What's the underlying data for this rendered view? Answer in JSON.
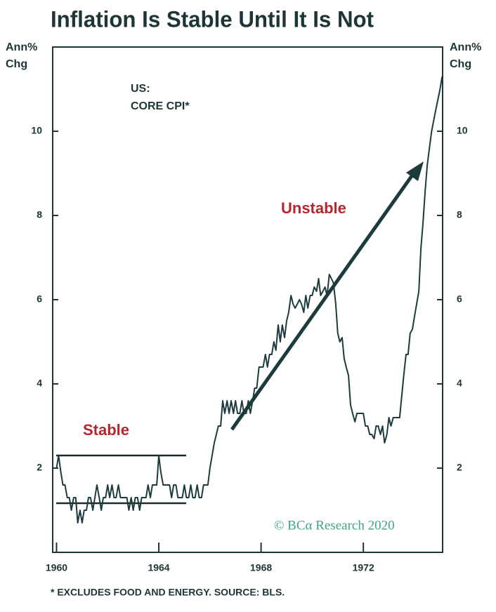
{
  "chart_data": {
    "type": "line",
    "title": "Inflation Is Stable Until It Is Not",
    "ylabel": [
      "Ann%",
      "Chg"
    ],
    "y2label": [
      "Ann%",
      "Chg"
    ],
    "annotations": [
      "US:",
      "CORE CPI*",
      "Stable",
      "Unstable",
      "© BCα Research 2020"
    ],
    "footnote": "* EXCLUDES FOOD AND ENERGY. SOURCE: BLS.",
    "xlim": [
      1959.85,
      1975.1
    ],
    "xticks": [
      1960,
      1964,
      1968,
      1972
    ],
    "ylim": [
      0,
      12
    ],
    "yticks": [
      2,
      4,
      6,
      8,
      10
    ],
    "y2lim": [
      0,
      12
    ],
    "y2ticks": [
      2,
      4,
      6,
      8,
      10
    ],
    "series": [
      {
        "name": "Core CPI",
        "color": "#1d3b3c",
        "x": [
          1960.0,
          1960.08,
          1960.17,
          1960.25,
          1960.33,
          1960.42,
          1960.5,
          1960.58,
          1960.67,
          1960.75,
          1960.83,
          1960.92,
          1961.0,
          1961.08,
          1961.17,
          1961.25,
          1961.33,
          1961.42,
          1961.5,
          1961.58,
          1961.67,
          1961.75,
          1961.83,
          1961.92,
          1962.0,
          1962.08,
          1962.17,
          1962.25,
          1962.33,
          1962.42,
          1962.5,
          1962.58,
          1962.67,
          1962.75,
          1962.83,
          1962.92,
          1963.0,
          1963.08,
          1963.17,
          1963.25,
          1963.33,
          1963.42,
          1963.5,
          1963.58,
          1963.67,
          1963.75,
          1963.83,
          1963.92,
          1964.0,
          1964.08,
          1964.17,
          1964.25,
          1964.33,
          1964.42,
          1964.5,
          1964.58,
          1964.67,
          1964.75,
          1964.83,
          1964.92,
          1965.0,
          1965.08,
          1965.17,
          1965.25,
          1965.33,
          1965.42,
          1965.5,
          1965.58,
          1965.67,
          1965.75,
          1965.83,
          1965.92,
          1966.0,
          1966.17,
          1966.33,
          1966.42,
          1966.5,
          1966.58,
          1966.67,
          1966.75,
          1966.83,
          1966.92,
          1967.0,
          1967.08,
          1967.17,
          1967.25,
          1967.33,
          1967.42,
          1967.5,
          1967.58,
          1967.67,
          1967.75,
          1967.83,
          1967.92,
          1968.0,
          1968.08,
          1968.17,
          1968.25,
          1968.33,
          1968.42,
          1968.5,
          1968.58,
          1968.67,
          1968.75,
          1968.83,
          1968.92,
          1969.0,
          1969.08,
          1969.17,
          1969.25,
          1969.33,
          1969.42,
          1969.5,
          1969.58,
          1969.67,
          1969.75,
          1969.83,
          1969.92,
          1970.0,
          1970.08,
          1970.17,
          1970.25,
          1970.33,
          1970.42,
          1970.5,
          1970.58,
          1970.67,
          1970.75,
          1970.83,
          1970.92,
          1971.0,
          1971.08,
          1971.17,
          1971.25,
          1971.33,
          1971.42,
          1971.5,
          1971.58,
          1971.67,
          1971.75,
          1971.83,
          1971.92,
          1972.0,
          1972.08,
          1972.17,
          1972.25,
          1972.33,
          1972.42,
          1972.5,
          1972.58,
          1972.67,
          1972.75,
          1972.83,
          1972.92,
          1973.0,
          1973.08,
          1973.17,
          1973.25,
          1973.33,
          1973.42,
          1973.5,
          1973.58,
          1973.67,
          1973.75,
          1973.83,
          1973.92,
          1974.0,
          1974.17,
          1974.25,
          1974.33,
          1974.42,
          1974.5,
          1974.67,
          1974.83,
          1975.0,
          1975.08
        ],
        "values": [
          2.0,
          2.3,
          1.9,
          1.6,
          1.6,
          1.3,
          1.3,
          1.0,
          1.3,
          1.3,
          0.7,
          1.0,
          0.7,
          1.0,
          1.0,
          1.3,
          1.3,
          1.0,
          1.3,
          1.6,
          1.3,
          1.0,
          1.3,
          1.3,
          1.6,
          1.3,
          1.6,
          1.3,
          1.3,
          1.6,
          1.3,
          1.3,
          1.3,
          1.3,
          1.0,
          1.3,
          1.0,
          1.3,
          1.3,
          1.0,
          1.3,
          1.3,
          1.3,
          1.6,
          1.3,
          1.6,
          1.6,
          1.6,
          2.3,
          1.9,
          1.6,
          1.6,
          1.6,
          1.6,
          1.3,
          1.6,
          1.6,
          1.3,
          1.3,
          1.3,
          1.6,
          1.3,
          1.3,
          1.6,
          1.3,
          1.3,
          1.6,
          1.3,
          1.3,
          1.6,
          1.6,
          1.6,
          2.0,
          2.6,
          3.0,
          3.0,
          3.6,
          3.3,
          3.6,
          3.3,
          3.6,
          3.3,
          3.6,
          3.3,
          3.3,
          3.6,
          3.3,
          3.3,
          3.6,
          3.3,
          3.6,
          3.9,
          3.9,
          4.4,
          4.4,
          4.4,
          4.7,
          4.4,
          4.7,
          4.7,
          5.0,
          4.8,
          5.4,
          5.0,
          5.4,
          5.1,
          5.5,
          5.7,
          6.1,
          5.9,
          5.8,
          5.9,
          6.0,
          5.9,
          5.7,
          6.1,
          5.8,
          6.1,
          6.1,
          6.3,
          6.2,
          6.5,
          6.1,
          6.2,
          6.3,
          6.1,
          6.6,
          6.5,
          6.4,
          5.9,
          5.2,
          5.0,
          5.1,
          4.6,
          4.4,
          4.2,
          3.5,
          3.3,
          3.1,
          3.3,
          3.3,
          3.3,
          3.3,
          3.0,
          3.0,
          2.8,
          2.8,
          2.7,
          3.0,
          3.0,
          2.8,
          3.0,
          2.6,
          2.8,
          3.2,
          3.0,
          3.2,
          3.2,
          3.2,
          3.2,
          3.7,
          4.2,
          4.7,
          4.7,
          5.2,
          5.3,
          5.6,
          6.2,
          7.2,
          7.8,
          8.6,
          9.2,
          10.0,
          10.5,
          11.0,
          11.3
        ]
      }
    ]
  }
}
